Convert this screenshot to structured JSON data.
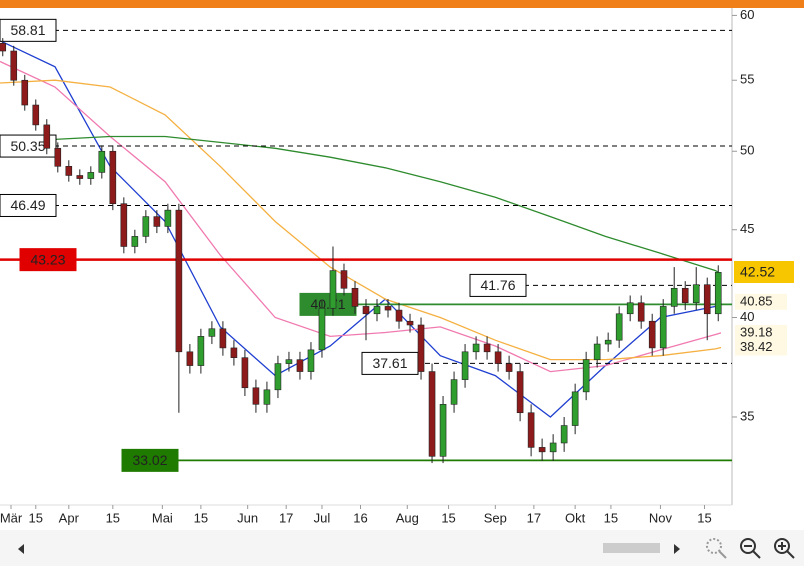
{
  "chart_data": {
    "type": "candlestick",
    "log_scale": true,
    "ylim": [
      31.1,
      60.6
    ],
    "yticks": [
      35,
      40,
      45,
      50,
      55,
      60
    ],
    "xlim": [
      0,
      266
    ],
    "xticks": [
      {
        "value": 4,
        "label": "Mär"
      },
      {
        "value": 13,
        "label": "15"
      },
      {
        "value": 25,
        "label": "Apr"
      },
      {
        "value": 41,
        "label": "15"
      },
      {
        "value": 59,
        "label": "Mai"
      },
      {
        "value": 73,
        "label": "15"
      },
      {
        "value": 90,
        "label": "Jun"
      },
      {
        "value": 104,
        "label": "17"
      },
      {
        "value": 117,
        "label": "Jul"
      },
      {
        "value": 131,
        "label": "16"
      },
      {
        "value": 148,
        "label": "Aug"
      },
      {
        "value": 163,
        "label": "15"
      },
      {
        "value": 180,
        "label": "Sep"
      },
      {
        "value": 194,
        "label": "17"
      },
      {
        "value": 209,
        "label": "Okt"
      },
      {
        "value": 222,
        "label": "15"
      },
      {
        "value": 240,
        "label": "Nov"
      },
      {
        "value": 256,
        "label": "15"
      }
    ],
    "candles": {
      "up_color": "#2f9e2f",
      "down_color": "#8e1b1b",
      "x": [
        1,
        5,
        9,
        13,
        17,
        21,
        25,
        29,
        33,
        37,
        41,
        45,
        49,
        53,
        57,
        61,
        65,
        69,
        73,
        77,
        81,
        85,
        89,
        93,
        97,
        101,
        105,
        109,
        113,
        117,
        121,
        125,
        129,
        133,
        137,
        141,
        145,
        149,
        153,
        157,
        161,
        165,
        169,
        173,
        177,
        181,
        185,
        189,
        193,
        197,
        201,
        205,
        209,
        213,
        217,
        221,
        225,
        229,
        233,
        237,
        241,
        245,
        249,
        253,
        257,
        261
      ],
      "open": [
        57.8,
        57.2,
        55.0,
        53.2,
        51.8,
        50.2,
        49.0,
        48.4,
        48.2,
        48.6,
        50.0,
        46.6,
        44.0,
        44.6,
        45.8,
        45.2,
        46.2,
        38.2,
        37.5,
        39.0,
        39.4,
        38.4,
        37.9,
        36.4,
        35.6,
        36.3,
        37.6,
        37.8,
        37.2,
        38.3,
        40.5,
        42.6,
        41.6,
        40.6,
        40.2,
        40.6,
        40.4,
        39.8,
        39.6,
        37.2,
        33.2,
        35.6,
        36.8,
        38.2,
        38.6,
        38.2,
        37.6,
        37.2,
        35.2,
        33.6,
        33.4,
        33.8,
        34.6,
        36.2,
        37.8,
        38.6,
        38.8,
        40.2,
        40.8,
        39.8,
        38.4,
        40.6,
        41.6,
        40.8,
        41.8,
        40.2
      ],
      "high": [
        58.2,
        57.6,
        55.4,
        53.6,
        52.2,
        50.6,
        49.4,
        48.8,
        49.0,
        50.4,
        50.4,
        47.0,
        45.0,
        46.2,
        46.2,
        46.6,
        46.6,
        38.6,
        39.4,
        39.8,
        39.8,
        38.8,
        38.3,
        36.8,
        36.7,
        38.0,
        38.2,
        38.2,
        38.7,
        40.9,
        44.0,
        43.0,
        42.0,
        41.0,
        41.0,
        41.0,
        40.8,
        40.2,
        40.0,
        37.6,
        36.0,
        37.2,
        38.6,
        39.0,
        39.0,
        38.6,
        38.0,
        37.6,
        35.6,
        34.0,
        34.2,
        35.0,
        36.6,
        38.2,
        39.0,
        39.2,
        40.6,
        41.2,
        41.2,
        40.2,
        41.0,
        42.8,
        42.0,
        42.8,
        42.2,
        42.9
      ],
      "low": [
        56.8,
        54.6,
        52.8,
        51.4,
        49.8,
        48.6,
        48.0,
        47.8,
        47.8,
        48.2,
        46.2,
        43.6,
        43.6,
        44.2,
        44.8,
        44.8,
        35.2,
        37.1,
        37.1,
        38.6,
        38.0,
        37.5,
        36.0,
        35.2,
        35.2,
        35.9,
        37.2,
        36.8,
        36.8,
        37.9,
        40.1,
        41.2,
        40.2,
        38.8,
        39.8,
        40.0,
        39.4,
        39.2,
        36.8,
        32.9,
        32.9,
        35.2,
        36.4,
        37.8,
        37.8,
        37.2,
        36.8,
        34.8,
        33.2,
        33.0,
        33.0,
        33.4,
        34.2,
        35.8,
        37.4,
        38.2,
        38.4,
        39.8,
        39.4,
        38.0,
        38.0,
        40.2,
        40.4,
        40.4,
        38.8,
        39.8
      ],
      "close": [
        57.2,
        55.0,
        53.2,
        51.8,
        50.2,
        49.0,
        48.4,
        48.2,
        48.6,
        50.0,
        46.6,
        44.0,
        44.6,
        45.8,
        45.2,
        46.2,
        38.2,
        37.5,
        39.0,
        39.4,
        38.4,
        37.9,
        36.4,
        35.6,
        36.3,
        37.6,
        37.8,
        37.2,
        38.3,
        40.5,
        42.6,
        41.6,
        40.6,
        40.2,
        40.6,
        40.4,
        39.8,
        39.6,
        37.2,
        33.2,
        35.6,
        36.8,
        38.2,
        38.6,
        38.2,
        37.6,
        37.2,
        35.2,
        33.6,
        33.4,
        33.8,
        34.6,
        36.2,
        37.8,
        38.6,
        38.8,
        40.2,
        40.8,
        39.8,
        38.4,
        40.6,
        41.6,
        40.8,
        41.8,
        40.2,
        42.5
      ]
    },
    "last_price": 42.52,
    "last_price_color": "#f7c600",
    "series": [
      {
        "color": "#1f3fd0",
        "x": [
          0,
          20,
          40,
          60,
          80,
          100,
          120,
          140,
          160,
          180,
          200,
          220,
          240,
          260,
          262
        ],
        "values": [
          58,
          56,
          49,
          45.5,
          39.5,
          37,
          38.5,
          41,
          38,
          37,
          35,
          37.5,
          40,
          40.6,
          40.85
        ],
        "last_value": 40.85
      },
      {
        "color": "#f07ab0",
        "x": [
          0,
          20,
          40,
          60,
          80,
          100,
          120,
          140,
          160,
          180,
          200,
          220,
          240,
          260,
          262
        ],
        "values": [
          56.4,
          54.5,
          51,
          48,
          43.5,
          40,
          39,
          39.2,
          39.5,
          38.5,
          37.2,
          37.5,
          38.3,
          39.1,
          39.18
        ],
        "last_value": 39.18
      },
      {
        "color": "#f5b041",
        "x": [
          0,
          20,
          40,
          60,
          80,
          100,
          120,
          140,
          160,
          180,
          200,
          220,
          240,
          260,
          262
        ],
        "values": [
          54.8,
          55,
          54.5,
          52.5,
          49,
          45.5,
          42.8,
          41,
          40,
          38.8,
          37.8,
          37.8,
          38,
          38.35,
          38.42
        ],
        "last_value": 38.42
      },
      {
        "color": "#2e8b2e",
        "x": [
          0,
          20,
          40,
          60,
          80,
          100,
          120,
          140,
          160,
          180,
          200,
          220,
          240,
          260,
          262
        ],
        "values": [
          50.5,
          50.8,
          51,
          51,
          50.6,
          50.2,
          49.6,
          48.9,
          48,
          47,
          45.8,
          44.6,
          43.6,
          42.6,
          42.4
        ]
      }
    ],
    "levels": [
      {
        "value": 58.81,
        "color": "#000000",
        "style": "dashed"
      },
      {
        "value": 50.35,
        "color": "#000000",
        "style": "dashed"
      },
      {
        "value": 46.49,
        "color": "#000000",
        "style": "dashed"
      },
      {
        "value": 43.23,
        "color": "#e00000",
        "style": "solid"
      },
      {
        "value": 41.76,
        "color": "#000000",
        "style": "dashed"
      },
      {
        "value": 40.71,
        "color": "#2e8b2e",
        "style": "solid"
      },
      {
        "value": 37.61,
        "color": "#000000",
        "style": "dashed"
      },
      {
        "value": 33.02,
        "color": "#1f7a00",
        "style": "solid"
      }
    ]
  }
}
